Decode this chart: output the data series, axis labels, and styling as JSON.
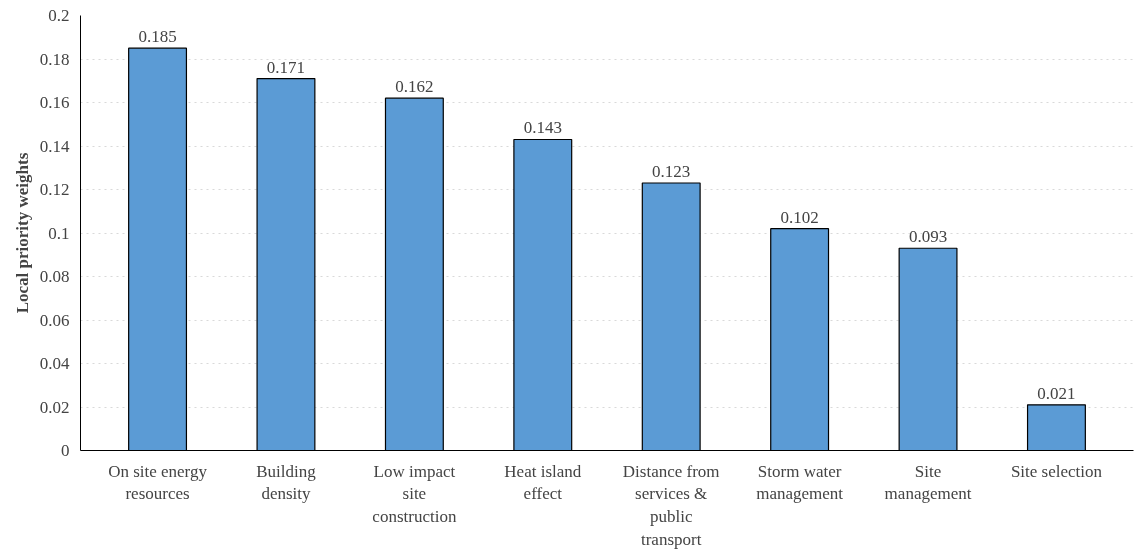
{
  "chart_data": {
    "type": "bar",
    "ylabel": "Local priority weights",
    "categories": [
      "On site energy resources",
      "Building density",
      "Low impact site construction",
      "Heat island effect",
      "Distance from services & public transport",
      "Storm water management",
      "Site management",
      "Site selection"
    ],
    "values": [
      0.185,
      0.171,
      0.162,
      0.143,
      0.123,
      0.102,
      0.093,
      0.021
    ],
    "color": "#5b9bd5",
    "data_labels": true,
    "grid": "y",
    "ylim": [
      0,
      0.2
    ],
    "yticks": [
      0,
      0.02,
      0.04,
      0.06,
      0.08,
      0.1,
      0.12,
      0.14,
      0.16,
      0.18,
      0.2
    ]
  }
}
